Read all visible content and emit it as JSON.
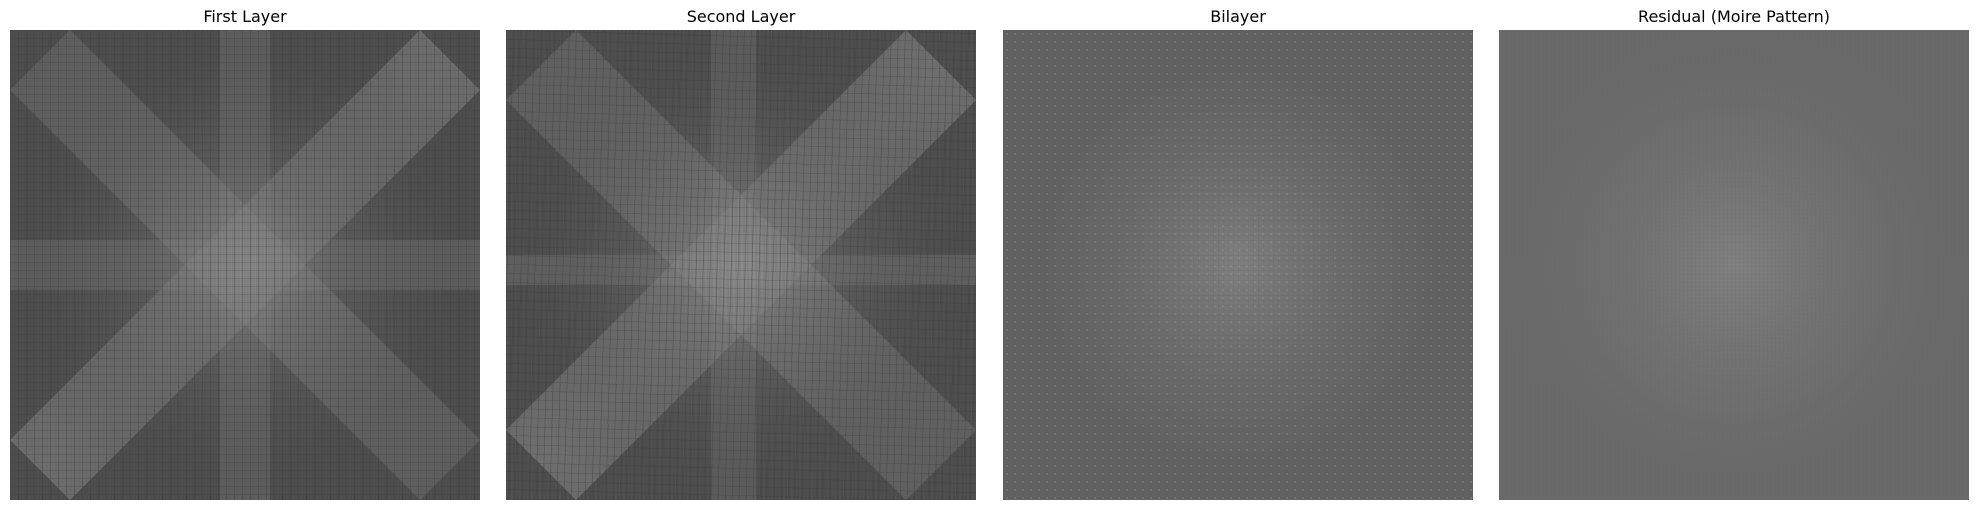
{
  "panels": [
    {
      "title": "First Layer",
      "image": "moire-first-layer",
      "tone": "#4a4a4a",
      "highlight": "#8a8a8a"
    },
    {
      "title": "Second Layer",
      "image": "moire-second-layer",
      "tone": "#4b4b4b",
      "highlight": "#8c8c8c"
    },
    {
      "title": "Bilayer",
      "image": "moire-bilayer",
      "tone": "#616161",
      "highlight": "#8a8a8a"
    },
    {
      "title": "Residual (Moire Pattern)",
      "image": "moire-residual",
      "tone": "#6a6a6a",
      "highlight": "#888888"
    }
  ]
}
